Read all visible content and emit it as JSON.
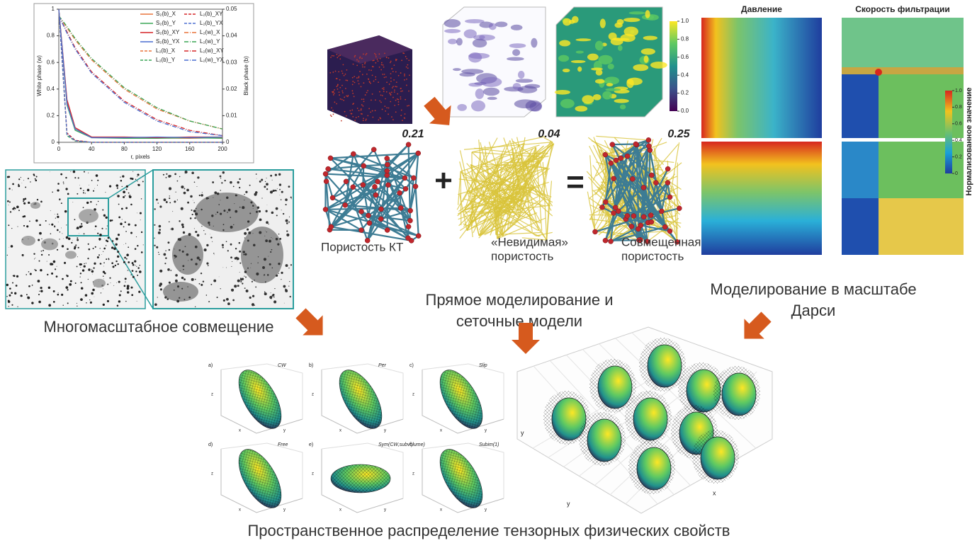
{
  "chart_data": {
    "type": "line",
    "xlabel": "r, pixels",
    "ylabel": "White phase (w)",
    "y2label": "Black phase (b)",
    "x": [
      0,
      10,
      20,
      40,
      80,
      120,
      160,
      200
    ],
    "xlim": [
      0,
      200
    ],
    "xticks": [
      0,
      40,
      80,
      120,
      160,
      200
    ],
    "ylim": [
      0,
      1
    ],
    "yticks": [
      0,
      0.2,
      0.4,
      0.6,
      0.8,
      1
    ],
    "y2lim": [
      0,
      0.05
    ],
    "y2ticks": [
      0,
      0.01,
      0.02,
      0.03,
      0.04,
      0.05
    ],
    "legend": "upper right",
    "series": [
      {
        "name": "S₂(b)_X",
        "color": "#e8743b",
        "dash": "solid",
        "values": [
          1,
          0.3,
          0.1,
          0.04,
          0.035,
          0.033,
          0.03,
          0.035
        ]
      },
      {
        "name": "S₂(b)_Y",
        "color": "#3aa655",
        "dash": "solid",
        "values": [
          1,
          0.28,
          0.09,
          0.035,
          0.03,
          0.03,
          0.035,
          0.03
        ]
      },
      {
        "name": "S₂(b)_XY",
        "color": "#d62728",
        "dash": "solid",
        "values": [
          1,
          0.32,
          0.11,
          0.04,
          0.04,
          0.035,
          0.04,
          0.04
        ]
      },
      {
        "name": "S₂(b)_YX",
        "color": "#4a6fd0",
        "dash": "solid",
        "values": [
          1,
          0.29,
          0.1,
          0.035,
          0.035,
          0.04,
          0.035,
          0.04
        ]
      },
      {
        "name": "L₂(b)_X",
        "color": "#e8743b",
        "dash": "dashed",
        "values": [
          1,
          0.06,
          0.01,
          0,
          0,
          0,
          0,
          0
        ]
      },
      {
        "name": "L₂(b)_Y",
        "color": "#3aa655",
        "dash": "dashed",
        "values": [
          1,
          0.05,
          0.01,
          0,
          0,
          0,
          0,
          0
        ]
      },
      {
        "name": "L₂(b)_XY",
        "color": "#d62728",
        "dash": "dashed",
        "values": [
          1,
          0.07,
          0.015,
          0,
          0,
          0,
          0,
          0
        ]
      },
      {
        "name": "L₂(b)_YX",
        "color": "#4a6fd0",
        "dash": "dashed",
        "values": [
          1,
          0.06,
          0.012,
          0,
          0,
          0,
          0,
          0
        ]
      },
      {
        "name": "L₂(w)_X",
        "color": "#e8743b",
        "dash": "dashdot",
        "values": [
          0.95,
          0.86,
          0.77,
          0.62,
          0.4,
          0.25,
          0.16,
          0.1
        ]
      },
      {
        "name": "L₂(w)_Y",
        "color": "#3aa655",
        "dash": "dashdot",
        "values": [
          0.95,
          0.87,
          0.78,
          0.63,
          0.41,
          0.26,
          0.16,
          0.1
        ]
      },
      {
        "name": "L₂(w)_XY",
        "color": "#d62728",
        "dash": "dashdot",
        "values": [
          0.95,
          0.83,
          0.71,
          0.53,
          0.31,
          0.17,
          0.09,
          0.05
        ]
      },
      {
        "name": "L₂(w)_YX",
        "color": "#4a6fd0",
        "dash": "dashdot",
        "values": [
          0.95,
          0.82,
          0.7,
          0.52,
          0.3,
          0.16,
          0.08,
          0.05
        ]
      }
    ]
  },
  "diagram": {
    "multiscale_caption": "Многомасштабное совмещение",
    "colorbar1": {
      "ticks": [
        {
          "value": 0,
          "label": "0.0"
        },
        {
          "value": 0.2,
          "label": "0.2"
        },
        {
          "value": 0.4,
          "label": "0.4"
        },
        {
          "value": 0.6,
          "label": "0.6"
        },
        {
          "value": 0.8,
          "label": "0.8"
        },
        {
          "value": 1,
          "label": "1.0"
        }
      ]
    },
    "networks": [
      {
        "value": "0.21",
        "caption": [
          "Пористость КТ"
        ]
      },
      {
        "value": "0.04",
        "caption": [
          "«Невидимая»",
          "пористость"
        ]
      },
      {
        "value": "0.25",
        "caption": [
          "Совмещенная",
          "пористость"
        ]
      }
    ],
    "plus": "+",
    "equals": "=",
    "direct_caption": [
      "Прямое моделирование и",
      "сеточные модели"
    ],
    "fields": {
      "pressure": "Давление",
      "velocity": "Скорость фильтрации",
      "colorbar_label": "Нормализованное значение",
      "colorbar_ticks": [
        0,
        0.2,
        0.4,
        0.6,
        0.8,
        {
          "value": 1,
          "label": "1.0"
        }
      ]
    },
    "darcy_caption": [
      "Моделирование в масштабе",
      "Дарси"
    ],
    "panels": [
      {
        "letter": "a)",
        "name": "CW"
      },
      {
        "letter": "b)",
        "name": "Per"
      },
      {
        "letter": "c)",
        "name": "Slip"
      },
      {
        "letter": "d)",
        "name": "Free"
      },
      {
        "letter": "e)",
        "name": "Sym(CW,subvolume)"
      },
      {
        "letter": "f)",
        "name": "Subim(1)"
      }
    ],
    "axes3d": {
      "x": "x",
      "y": "y",
      "z": "z"
    },
    "bottom_caption": "Пространственное распределение тензорных физических свойств"
  }
}
